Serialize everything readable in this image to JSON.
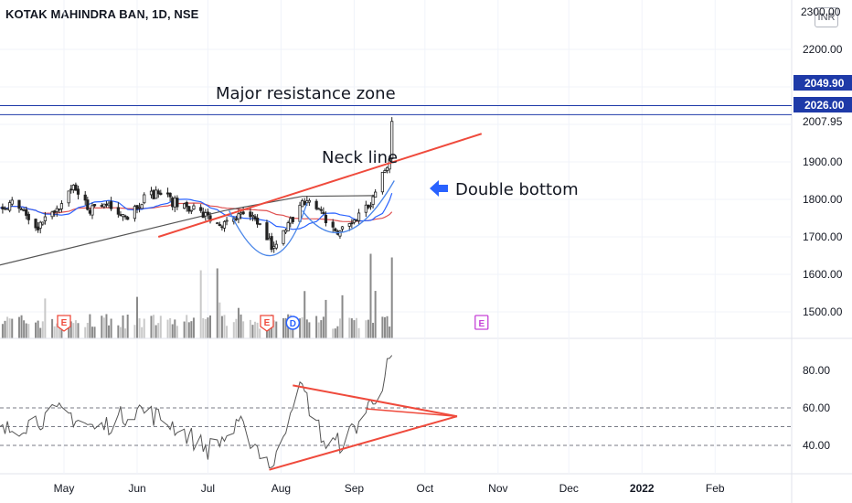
{
  "header": {
    "symbol_title": "KOTAK MAHINDRA BAN, 1D, NSE",
    "currency": "INR",
    "top_price_partial": "2300.00"
  },
  "chart_data": [
    {
      "type": "candlestick",
      "title": "KOTAK MAHINDRA BAN, 1D, NSE",
      "price_axis_ticks": [
        2200,
        2100,
        2000,
        1900,
        1800,
        1700,
        1600,
        1500
      ],
      "price_axis_labels": [
        "2200.00",
        "1900.00",
        "1800.00",
        "1700.00",
        "1600.00",
        "1500.00"
      ],
      "price_labels": [
        {
          "value": 2049.9,
          "text": "2049.90",
          "style": "blue"
        },
        {
          "value": 2026.0,
          "text": "2026.00",
          "style": "blue"
        },
        {
          "value": 2007.95,
          "text": "2007.95",
          "style": "plain"
        }
      ],
      "time_axis_labels": [
        "May",
        "Jun",
        "Jul",
        "Aug",
        "Sep",
        "Oct",
        "Nov",
        "Dec",
        "2022",
        "Feb"
      ],
      "horizontal_lines": [
        2049.9,
        2026.0
      ],
      "annotations": [
        {
          "text": "Major resistance zone"
        },
        {
          "text": "Neck line"
        },
        {
          "text": "Double bottom"
        }
      ],
      "event_markers": [
        {
          "label": "E",
          "date": "2021-05-01"
        },
        {
          "label": "E",
          "date": "2021-07-26"
        },
        {
          "label": "D",
          "date": "2021-08-06"
        },
        {
          "label": "E",
          "date": "2021-10-25"
        }
      ],
      "close_series": [
        {
          "x": "2021-04-01",
          "y": 1765
        },
        {
          "x": "2021-04-10",
          "y": 1800
        },
        {
          "x": "2021-04-20",
          "y": 1730
        },
        {
          "x": "2021-04-28",
          "y": 1770
        },
        {
          "x": "2021-05-05",
          "y": 1825
        },
        {
          "x": "2021-05-12",
          "y": 1775
        },
        {
          "x": "2021-05-20",
          "y": 1790
        },
        {
          "x": "2021-05-28",
          "y": 1755
        },
        {
          "x": "2021-06-03",
          "y": 1800
        },
        {
          "x": "2021-06-10",
          "y": 1820
        },
        {
          "x": "2021-06-17",
          "y": 1790
        },
        {
          "x": "2021-06-24",
          "y": 1780
        },
        {
          "x": "2021-07-01",
          "y": 1750
        },
        {
          "x": "2021-07-08",
          "y": 1730
        },
        {
          "x": "2021-07-15",
          "y": 1755
        },
        {
          "x": "2021-07-22",
          "y": 1740
        },
        {
          "x": "2021-07-29",
          "y": 1665
        },
        {
          "x": "2021-08-05",
          "y": 1740
        },
        {
          "x": "2021-08-10",
          "y": 1805
        },
        {
          "x": "2021-08-18",
          "y": 1760
        },
        {
          "x": "2021-08-25",
          "y": 1710
        },
        {
          "x": "2021-09-01",
          "y": 1745
        },
        {
          "x": "2021-09-08",
          "y": 1790
        },
        {
          "x": "2021-09-13",
          "y": 1860
        },
        {
          "x": "2021-09-16",
          "y": 1905
        },
        {
          "x": "2021-09-17",
          "y": 2008
        }
      ],
      "volume_spikes": [
        "2021-06-28",
        "2021-07-05",
        "2021-09-08",
        "2021-09-17"
      ]
    },
    {
      "type": "line",
      "title": "",
      "y_axis_labels": [
        "80.00",
        "60.00",
        "40.00"
      ],
      "y_ticks": [
        80,
        60,
        40
      ],
      "dashed_levels": [
        60,
        50,
        40
      ],
      "series": [
        {
          "values": [
            {
              "x": "2021-04-01",
              "y": 45
            },
            {
              "x": "2021-04-15",
              "y": 52
            },
            {
              "x": "2021-05-01",
              "y": 58
            },
            {
              "x": "2021-05-15",
              "y": 48
            },
            {
              "x": "2021-06-01",
              "y": 60
            },
            {
              "x": "2021-06-15",
              "y": 52
            },
            {
              "x": "2021-07-01",
              "y": 38
            },
            {
              "x": "2021-07-15",
              "y": 50
            },
            {
              "x": "2021-07-29",
              "y": 28
            },
            {
              "x": "2021-08-06",
              "y": 65
            },
            {
              "x": "2021-08-10",
              "y": 70
            },
            {
              "x": "2021-08-20",
              "y": 40
            },
            {
              "x": "2021-08-28",
              "y": 42
            },
            {
              "x": "2021-09-06",
              "y": 58
            },
            {
              "x": "2021-09-13",
              "y": 74
            },
            {
              "x": "2021-09-17",
              "y": 88
            }
          ]
        }
      ]
    }
  ]
}
